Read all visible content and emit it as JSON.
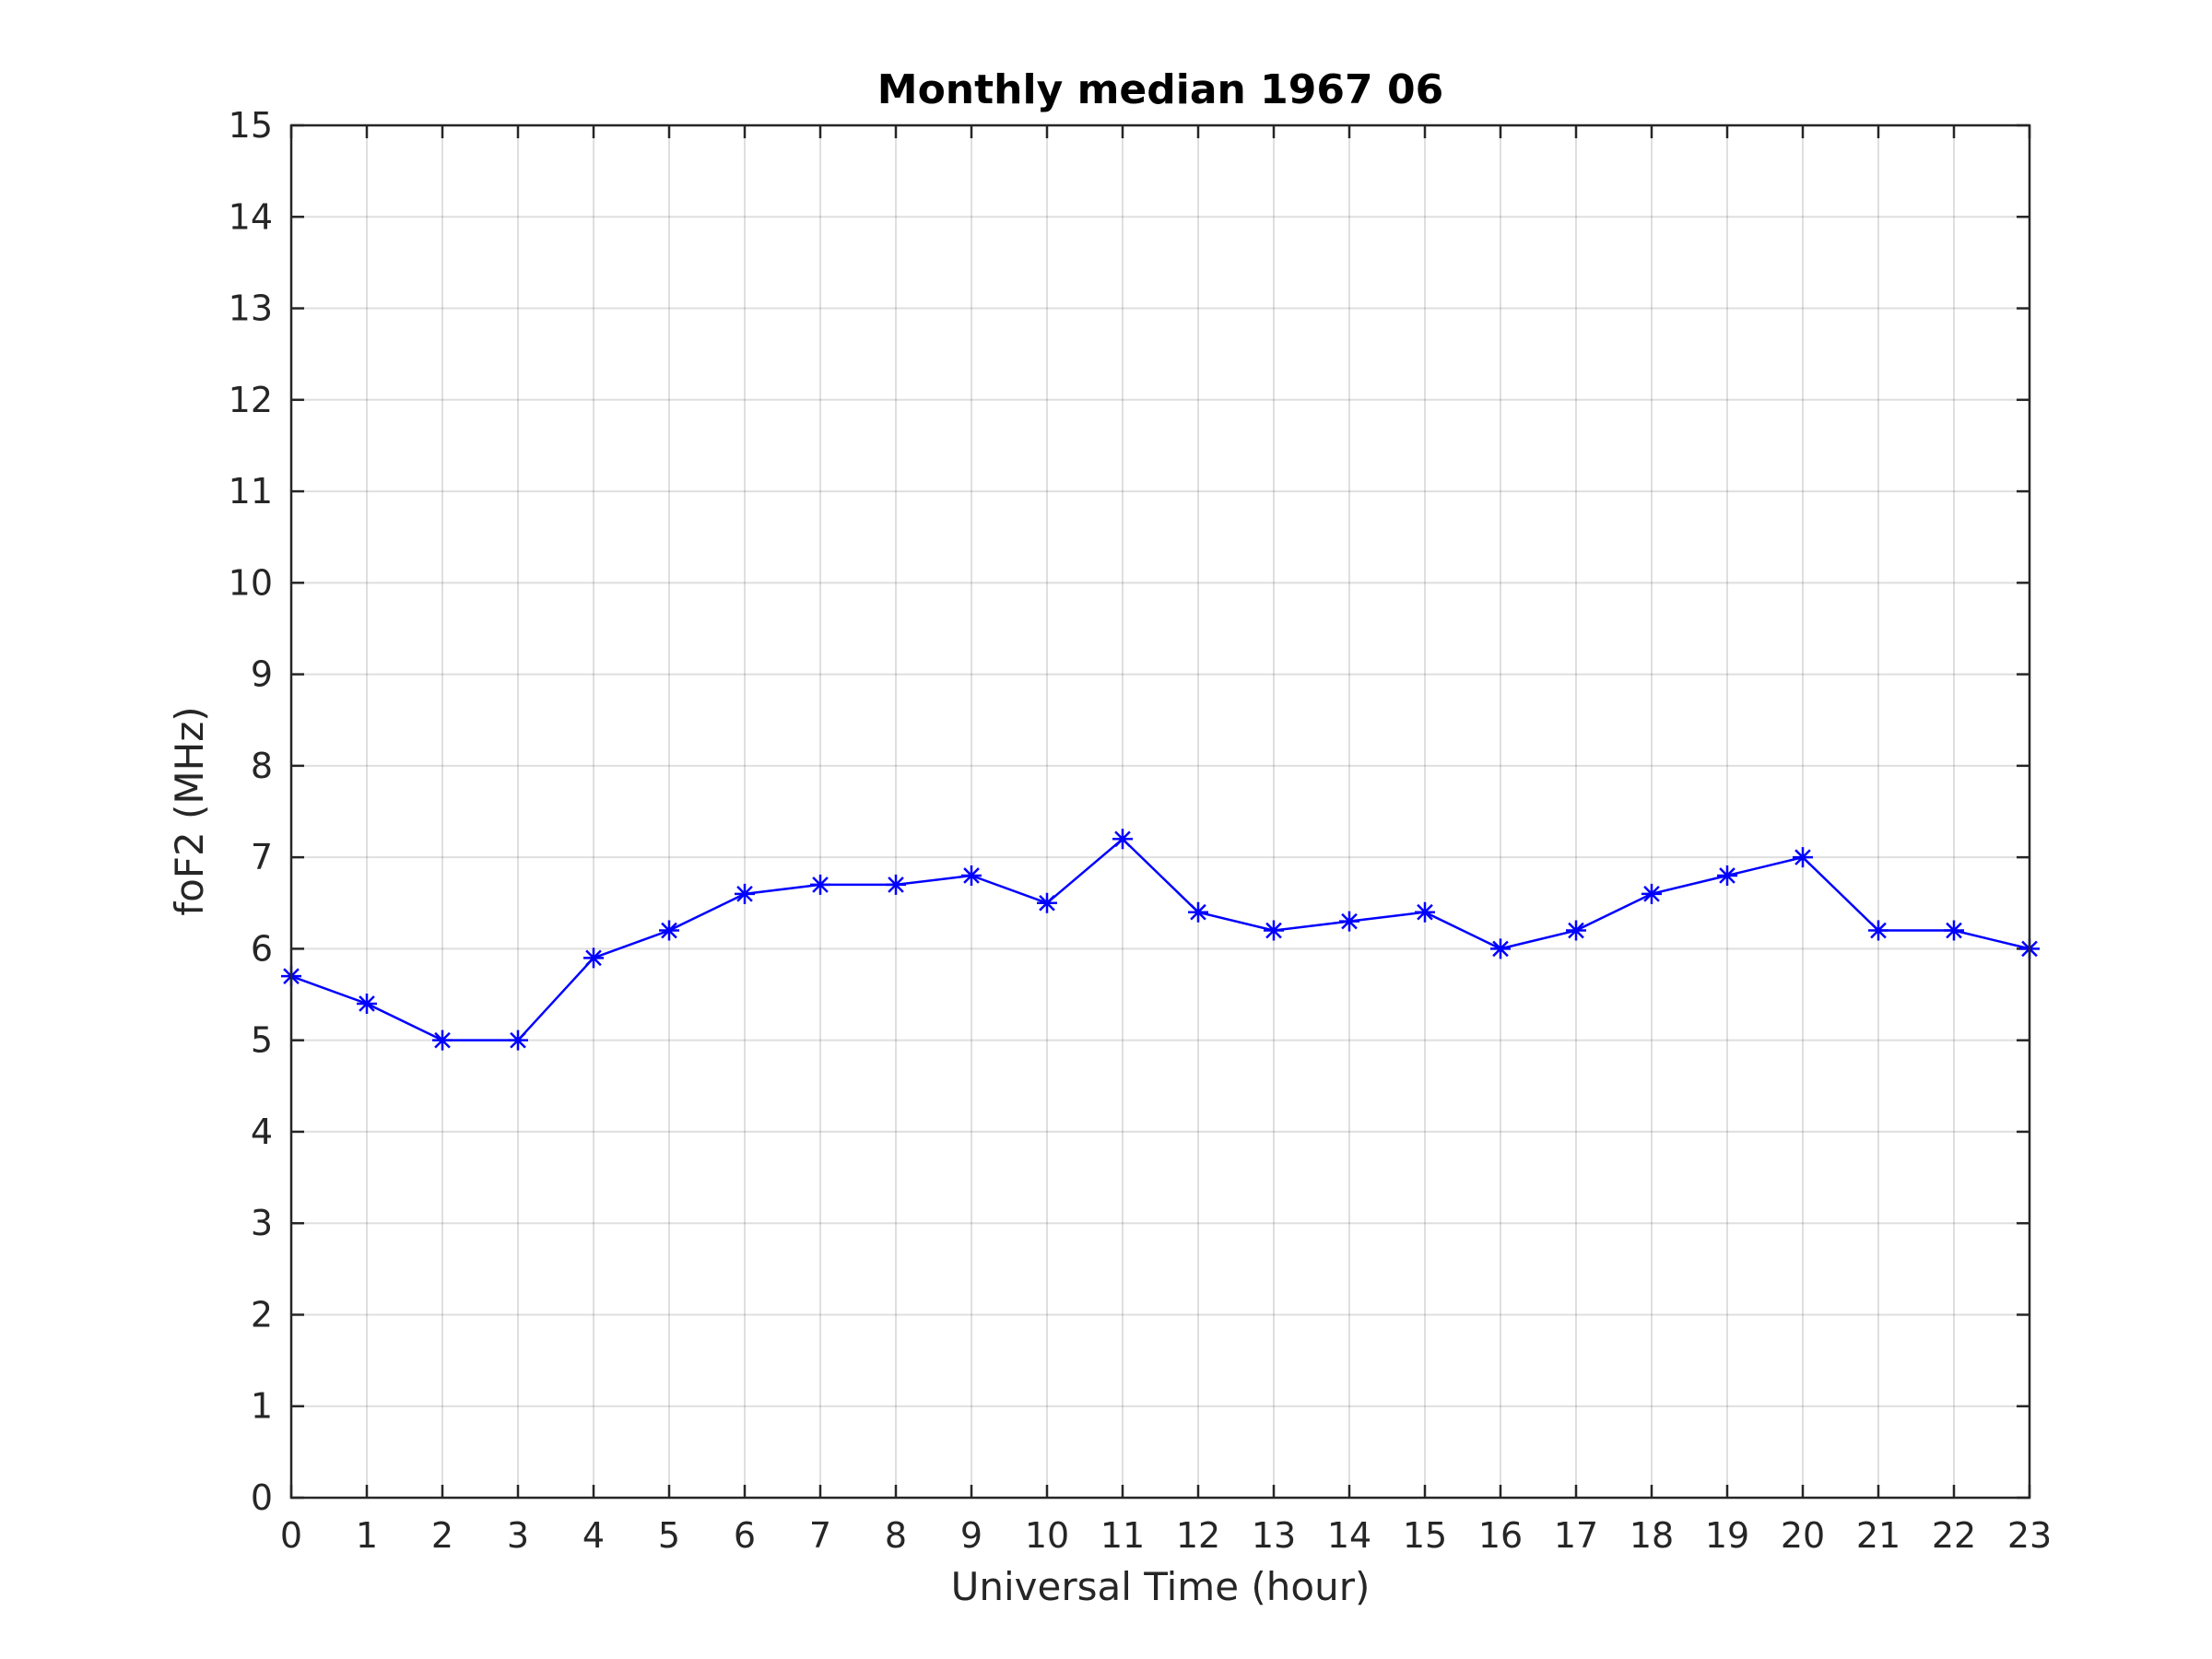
{
  "chart_data": {
    "type": "line",
    "title": "Monthly median 1967 06",
    "xlabel": "Universal Time (hour)",
    "ylabel": "foF2 (MHz)",
    "xlim": [
      0,
      23
    ],
    "ylim": [
      0,
      15
    ],
    "x_ticks": [
      0,
      1,
      2,
      3,
      4,
      5,
      6,
      7,
      8,
      9,
      10,
      11,
      12,
      13,
      14,
      15,
      16,
      17,
      18,
      19,
      20,
      21,
      22,
      23
    ],
    "y_ticks": [
      0,
      1,
      2,
      3,
      4,
      5,
      6,
      7,
      8,
      9,
      10,
      11,
      12,
      13,
      14,
      15
    ],
    "grid": true,
    "series": [
      {
        "color": "#0000ff",
        "marker": "asterisk",
        "x": [
          0,
          1,
          2,
          3,
          4,
          5,
          6,
          7,
          8,
          9,
          10,
          11,
          12,
          13,
          14,
          15,
          16,
          17,
          18,
          19,
          20,
          21,
          22,
          23
        ],
        "values": [
          5.7,
          5.4,
          5.0,
          5.0,
          5.9,
          6.2,
          6.6,
          6.7,
          6.7,
          6.8,
          6.5,
          7.2,
          6.4,
          6.2,
          6.3,
          6.4,
          6.0,
          6.2,
          6.6,
          6.8,
          7.0,
          6.2,
          6.2,
          6.0
        ]
      }
    ]
  }
}
